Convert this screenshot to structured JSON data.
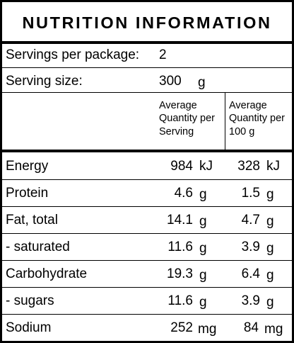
{
  "title": "NUTRITION INFORMATION",
  "servings": {
    "label": "Servings per package:",
    "value": "2"
  },
  "serving_size": {
    "label": "Serving size:",
    "value": "300",
    "unit": "g"
  },
  "headers": {
    "per_serving": [
      "Average",
      "Quantity per",
      "Serving"
    ],
    "per_100": [
      "Average",
      "Quantity per",
      "100 g"
    ]
  },
  "rows": [
    {
      "label": "Energy",
      "serving_value": "984",
      "serving_unit": "kJ",
      "per100_value": "328",
      "per100_unit": "kJ"
    },
    {
      "label": "Protein",
      "serving_value": "4.6",
      "serving_unit": "g",
      "per100_value": "1.5",
      "per100_unit": "g"
    },
    {
      "label": "Fat, total",
      "serving_value": "14.1",
      "serving_unit": "g",
      "per100_value": "4.7",
      "per100_unit": "g"
    },
    {
      "label": "- saturated",
      "serving_value": "11.6",
      "serving_unit": "g",
      "per100_value": "3.9",
      "per100_unit": "g"
    },
    {
      "label": "Carbohydrate",
      "serving_value": "19.3",
      "serving_unit": "g",
      "per100_value": "6.4",
      "per100_unit": "g"
    },
    {
      "label": "- sugars",
      "serving_value": "11.6",
      "serving_unit": "g",
      "per100_value": "3.9",
      "per100_unit": "g"
    },
    {
      "label": "Sodium",
      "serving_value": "252",
      "serving_unit": "mg",
      "per100_value": "84",
      "per100_unit": "mg"
    }
  ]
}
